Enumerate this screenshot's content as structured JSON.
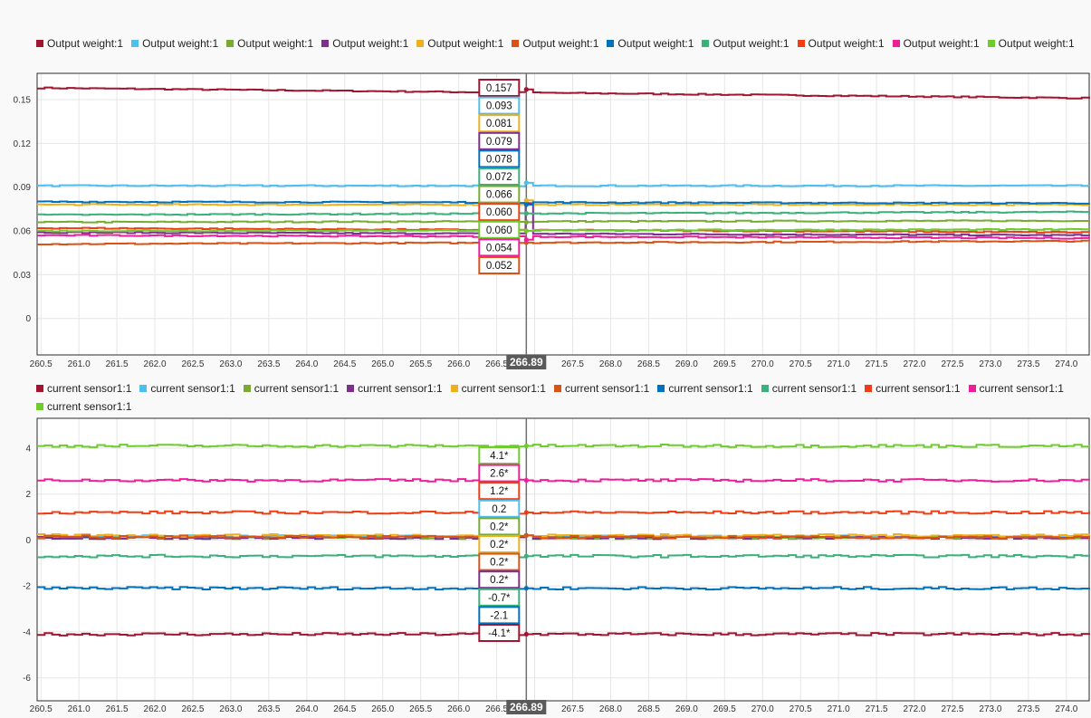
{
  "charts": [
    {
      "id": "top",
      "legend_label": "Output weight:1",
      "cursor_label": "266.89",
      "chart_data": {
        "type": "line",
        "xlim": [
          260.45,
          274.3
        ],
        "ylim": [
          -0.025,
          0.168
        ],
        "x_ticks": [
          "260.5",
          "261.0",
          "261.5",
          "262.0",
          "262.5",
          "263.0",
          "263.5",
          "264.0",
          "264.5",
          "265.0",
          "265.5",
          "266.0",
          "266.5",
          "267.0",
          "267.5",
          "268.0",
          "268.5",
          "269.0",
          "269.5",
          "270.0",
          "270.5",
          "271.0",
          "271.5",
          "272.0",
          "272.5",
          "273.0",
          "273.5",
          "274.0"
        ],
        "y_ticks": [
          0.15,
          0.12,
          0.09,
          0.06,
          0.03,
          0
        ],
        "y_tick_labels": [
          "0.15",
          "0.12",
          "0.09",
          "0.06",
          "0.03",
          "0"
        ],
        "cursor_x": 266.89,
        "series": [
          {
            "name": "Output weight:1",
            "color": "#a2142f",
            "start": 0.158,
            "end": 0.151,
            "cursor_value": 0.157,
            "label": "0.157"
          },
          {
            "name": "Output weight:1",
            "color": "#4dbeee",
            "start": 0.091,
            "end": 0.091,
            "cursor_value": 0.093,
            "label": "0.093"
          },
          {
            "name": "Output weight:1",
            "color": "#77ac30",
            "start": 0.066,
            "end": 0.067,
            "cursor_value": 0.066,
            "label": "0.066"
          },
          {
            "name": "Output weight:1",
            "color": "#7e2f8e",
            "start": 0.059,
            "end": 0.057,
            "cursor_value": 0.079,
            "label": "0.079"
          },
          {
            "name": "Output weight:1",
            "color": "#edb120",
            "start": 0.078,
            "end": 0.078,
            "cursor_value": 0.081,
            "label": "0.081"
          },
          {
            "name": "Output weight:1",
            "color": "#d95319",
            "start": 0.051,
            "end": 0.053,
            "cursor_value": 0.052,
            "label": "0.052"
          },
          {
            "name": "Output weight:1",
            "color": "#0072bd",
            "start": 0.08,
            "end": 0.079,
            "cursor_value": 0.078,
            "label": "0.078"
          },
          {
            "name": "Output weight:1",
            "color": "#3bb07a",
            "start": 0.071,
            "end": 0.073,
            "cursor_value": 0.072,
            "label": "0.072"
          },
          {
            "name": "Output weight:1",
            "color": "#f03e14",
            "start": 0.062,
            "end": 0.059,
            "cursor_value": 0.06,
            "label": "0.060"
          },
          {
            "name": "Output weight:1",
            "color": "#ee1d9a",
            "start": 0.057,
            "end": 0.055,
            "cursor_value": 0.054,
            "label": "0.054"
          },
          {
            "name": "Output weight:1",
            "color": "#6ecc2c",
            "start": 0.06,
            "end": 0.061,
            "cursor_value": 0.06,
            "label": "0.060"
          }
        ],
        "label_order": [
          0,
          1,
          4,
          3,
          6,
          7,
          2,
          8,
          10,
          9,
          5
        ]
      }
    },
    {
      "id": "bottom",
      "legend_label": "current sensor1:1",
      "cursor_label": "266.89",
      "chart_data": {
        "type": "line",
        "xlim": [
          260.45,
          274.3
        ],
        "ylim": [
          -7.0,
          5.3
        ],
        "x_ticks": [
          "260.5",
          "261.0",
          "261.5",
          "262.0",
          "262.5",
          "263.0",
          "263.5",
          "264.0",
          "264.5",
          "265.0",
          "265.5",
          "266.0",
          "266.5",
          "267.0",
          "267.5",
          "268.0",
          "268.5",
          "269.0",
          "269.5",
          "270.0",
          "270.5",
          "271.0",
          "271.5",
          "272.0",
          "272.5",
          "273.0",
          "273.5",
          "274.0"
        ],
        "y_ticks": [
          4,
          2,
          0,
          -2,
          -4,
          -6
        ],
        "y_tick_labels": [
          "4",
          "2",
          "0",
          "-2",
          "-4",
          "-6"
        ],
        "cursor_x": 266.89,
        "series": [
          {
            "name": "current sensor1:1",
            "color": "#a2142f",
            "start": -4.1,
            "end": -4.1,
            "cursor_value": -4.1,
            "label": "-4.1*"
          },
          {
            "name": "current sensor1:1",
            "color": "#4dbeee",
            "start": 0.15,
            "end": 0.15,
            "cursor_value": 0.2,
            "label": "0.2"
          },
          {
            "name": "current sensor1:1",
            "color": "#77ac30",
            "start": 0.1,
            "end": 0.1,
            "cursor_value": 0.2,
            "label": "0.2*"
          },
          {
            "name": "current sensor1:1",
            "color": "#7e2f8e",
            "start": 0.1,
            "end": 0.1,
            "cursor_value": 0.2,
            "label": "0.2*"
          },
          {
            "name": "current sensor1:1",
            "color": "#edb120",
            "start": 0.2,
            "end": 0.2,
            "cursor_value": 0.2,
            "label": "0.2*"
          },
          {
            "name": "current sensor1:1",
            "color": "#d95319",
            "start": 0.15,
            "end": 0.1,
            "cursor_value": 0.2,
            "label": "0.2*"
          },
          {
            "name": "current sensor1:1",
            "color": "#0072bd",
            "start": -2.1,
            "end": -2.1,
            "cursor_value": -2.1,
            "label": "-2.1"
          },
          {
            "name": "current sensor1:1",
            "color": "#3bb07a",
            "start": -0.7,
            "end": -0.7,
            "cursor_value": -0.7,
            "label": "-0.7*"
          },
          {
            "name": "current sensor1:1",
            "color": "#f03e14",
            "start": 1.2,
            "end": 1.2,
            "cursor_value": 1.2,
            "label": "1.2*"
          },
          {
            "name": "current sensor1:1",
            "color": "#ee1d9a",
            "start": 2.6,
            "end": 2.6,
            "cursor_value": 2.6,
            "label": "2.6*"
          },
          {
            "name": "current sensor1:1",
            "color": "#6ecc2c",
            "start": 4.1,
            "end": 4.1,
            "cursor_value": 4.1,
            "label": "4.1*"
          }
        ],
        "label_order": [
          10,
          9,
          8,
          1,
          2,
          4,
          5,
          3,
          7,
          6,
          0
        ]
      }
    }
  ]
}
